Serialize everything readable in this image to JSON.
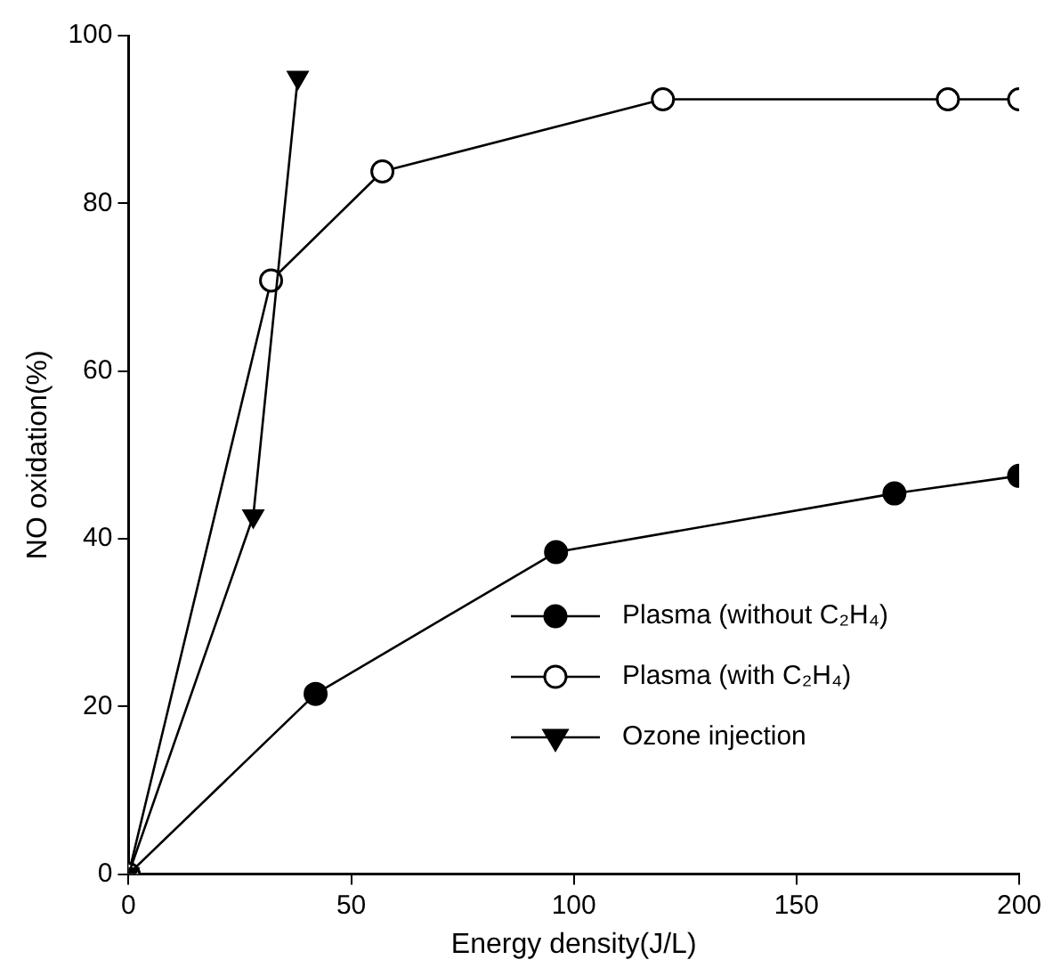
{
  "chart_data": {
    "type": "line",
    "xlabel": "Energy density(J/L)",
    "ylabel": "NO oxidation(%)",
    "xlim": [
      0,
      200
    ],
    "xticks": [
      0,
      50,
      100,
      150,
      200
    ],
    "ylim": [
      0,
      100
    ],
    "yticks": [
      0,
      20,
      40,
      60,
      80,
      100
    ],
    "grid": false,
    "legend": "bottom right",
    "series": [
      {
        "name": "Plasma (without C₂H₄)",
        "color": "#000000",
        "marker": "circle",
        "x": [
          0,
          42,
          96,
          172,
          200
        ],
        "values": [
          0,
          21.5,
          38.4,
          45.4,
          47.5
        ]
      },
      {
        "name": "Plasma (with C₂H₄)",
        "color": "#000000",
        "colors": [
          "#ffffff",
          "#ffffff",
          "#ffffff",
          "#ffffff",
          "#ffffff",
          "#ffffff"
        ],
        "marker": "circle",
        "x": [
          0,
          32,
          57,
          120,
          184,
          200
        ],
        "values": [
          0,
          70.8,
          83.8,
          92.4,
          92.4,
          92.4
        ]
      },
      {
        "name": "Ozone injection",
        "color": "#000000",
        "marker": "triangle",
        "x": [
          0,
          28,
          38
        ],
        "values": [
          0,
          42.7,
          95
        ]
      }
    ]
  }
}
